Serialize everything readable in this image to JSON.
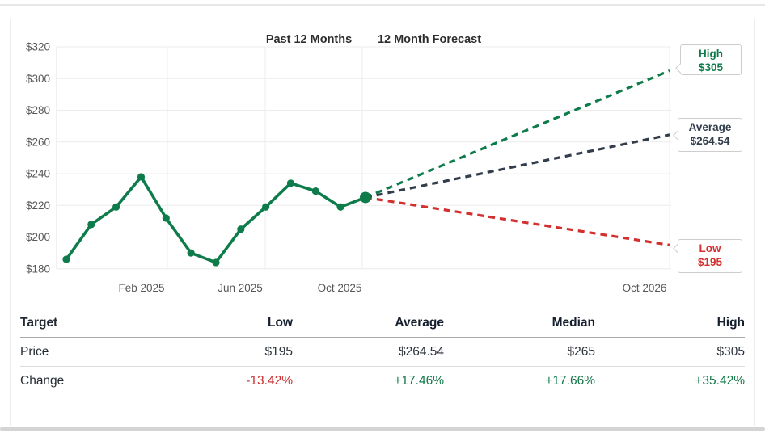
{
  "chart_data": {
    "type": "line",
    "title_left": "Past 12 Months",
    "title_right": "12 Month Forecast",
    "ylim": [
      180,
      320
    ],
    "grid": true,
    "legend_position": "none",
    "y_ticks": [
      {
        "value": 320,
        "label": "$320"
      },
      {
        "value": 300,
        "label": "$300"
      },
      {
        "value": 280,
        "label": "$280"
      },
      {
        "value": 260,
        "label": "$260"
      },
      {
        "value": 240,
        "label": "$240"
      },
      {
        "value": 220,
        "label": "$220"
      },
      {
        "value": 200,
        "label": "$200"
      },
      {
        "value": 180,
        "label": "$180"
      }
    ],
    "x_ticks": [
      "Feb 2025",
      "Jun 2025",
      "Oct 2025",
      "Oct 2026"
    ],
    "history": {
      "name": "Past 12 Months",
      "color": "#0e7c4a",
      "values": [
        186,
        208,
        219,
        238,
        212,
        190,
        184,
        205,
        219,
        234,
        229,
        219,
        225
      ],
      "current_value": 225
    },
    "forecast": {
      "high": {
        "label": "High",
        "value": 305,
        "value_label": "$305",
        "color": "#0e7c4a"
      },
      "average": {
        "label": "Average",
        "value": 264.54,
        "value_label": "$264.54",
        "color": "#323d4c"
      },
      "low": {
        "label": "Low",
        "value": 195,
        "value_label": "$195",
        "color": "#d32f2f"
      }
    }
  },
  "table": {
    "headers": [
      "Target",
      "Low",
      "Average",
      "Median",
      "High"
    ],
    "rows": [
      {
        "label": "Price",
        "values": [
          "$195",
          "$264.54",
          "$265",
          "$305"
        ],
        "colors": [
          "#2d333c",
          "#2d333c",
          "#2d333c",
          "#2d333c"
        ]
      },
      {
        "label": "Change",
        "values": [
          "-13.42%",
          "+17.46%",
          "+17.66%",
          "+35.42%"
        ],
        "colors": [
          "#c9302e",
          "#15784a",
          "#15784a",
          "#15784a"
        ]
      }
    ]
  }
}
